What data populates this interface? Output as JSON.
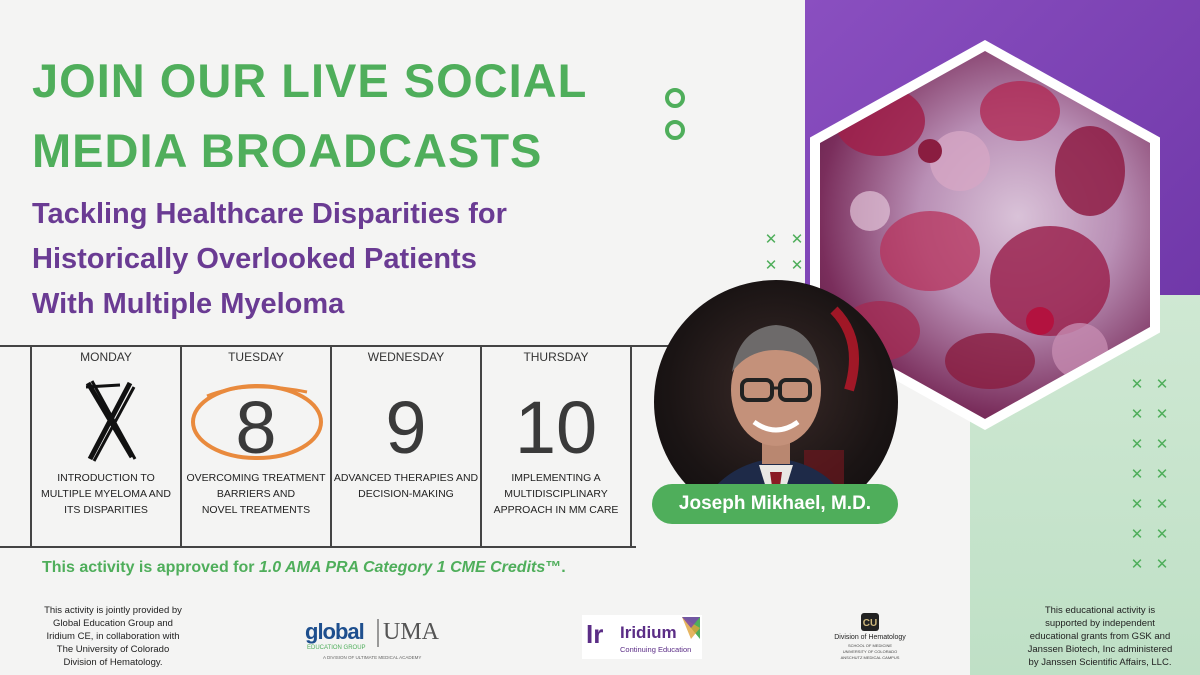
{
  "header": {
    "title_line1": "JOIN OUR LIVE SOCIAL",
    "title_line2": "MEDIA BROADCASTS",
    "subtitle_line1": "Tackling Healthcare Disparities for",
    "subtitle_line2": "Historically Overlooked Patients",
    "subtitle_line3": "With Multiple Myeloma"
  },
  "calendar": {
    "days": [
      {
        "name": "MONDAY",
        "number": "",
        "desc1": "INTRODUCTION TO",
        "desc2": "MULTIPLE MYELOMA AND",
        "desc3": "ITS DISPARITIES"
      },
      {
        "name": "TUESDAY",
        "number": "8",
        "desc1": "OVERCOMING TREATMENT",
        "desc2": "BARRIERS AND",
        "desc3": "NOVEL TREATMENTS"
      },
      {
        "name": "WEDNESDAY",
        "number": "9",
        "desc1": "ADVANCED THERAPIES AND",
        "desc2": "DECISION-MAKING",
        "desc3": ""
      },
      {
        "name": "THURSDAY",
        "number": "10",
        "desc1": "IMPLEMENTING A",
        "desc2": "MULTIDISCIPLINARY",
        "desc3": "APPROACH IN MM CARE"
      }
    ]
  },
  "speaker": {
    "name": "Joseph Mikhael, M.D."
  },
  "credit": {
    "prefix": "This activity is approved for ",
    "emph": "1.0 AMA PRA Category 1 CME Credits",
    "suffix": "™."
  },
  "footer": {
    "left_lines": [
      "This activity is jointly provided by",
      "Global Education Group and",
      "Iridium CE, in collaboration with",
      "The University of Colorado",
      "Division of Hematology."
    ],
    "right_lines": [
      "This educational activity is",
      "supported by independent",
      "educational grants from GSK and",
      "Janssen Biotech, Inc administered",
      "by Janssen Scientific Affairs, LLC."
    ],
    "logo_global_text": "global",
    "logo_global_sub": "EDUCATION GROUP",
    "logo_uma_text": "UMA",
    "logo_global_tagline": "A DIVISION OF ULTIMATE MEDICAL ACADEMY",
    "logo_iridium_mark": "Ir",
    "logo_iridium_text": "Iridium",
    "logo_iridium_sub": "Continuing Education",
    "logo_cu_line1": "Division of Hematology",
    "logo_cu_line2": "SCHOOL OF MEDICINE",
    "logo_cu_line3": "UNIVERSITY OF COLORADO",
    "logo_cu_line4": "ANSCHUTZ MEDICAL CAMPUS"
  },
  "colors": {
    "green": "#4fae5b",
    "purple": "#6a3b93",
    "panel_purple": "#7a42b4",
    "mint": "#c8e6cd"
  }
}
